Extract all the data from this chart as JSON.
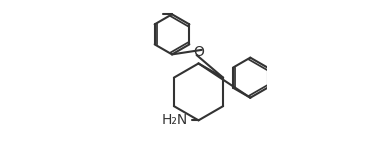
{
  "bg_color": "#ffffff",
  "line_color": "#333333",
  "line_width": 1.5,
  "font_size": 10,
  "label_color": "#333333"
}
